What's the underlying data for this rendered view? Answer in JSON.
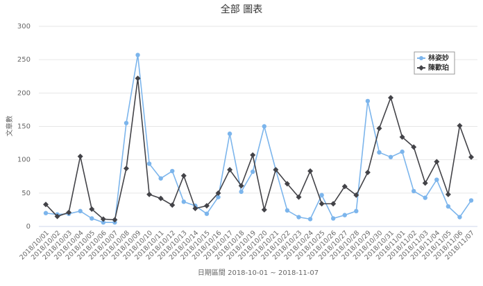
{
  "chart_data": {
    "type": "line",
    "title": "全部 圖表",
    "y_label": "文章數",
    "x_label": "日期區間 2018-10-01 ~ 2018-11-07",
    "categories": [
      "2018/10/01",
      "2018/10/02",
      "2018/10/03",
      "2018/10/04",
      "2018/10/05",
      "2018/10/06",
      "2018/10/07",
      "2018/10/08",
      "2018/10/09",
      "2018/10/10",
      "2018/10/11",
      "2018/10/12",
      "2018/10/13",
      "2018/10/14",
      "2018/10/15",
      "2018/10/16",
      "2018/10/17",
      "2018/10/18",
      "2018/10/19",
      "2018/10/20",
      "2018/10/21",
      "2018/10/22",
      "2018/10/23",
      "2018/10/24",
      "2018/10/25",
      "2018/10/26",
      "2018/10/27",
      "2018/10/28",
      "2018/10/29",
      "2018/10/30",
      "2018/10/31",
      "2018/11/01",
      "2018/11/02",
      "2018/11/03",
      "2018/11/04",
      "2018/11/05",
      "2018/11/06",
      "2018/11/07"
    ],
    "series": [
      {
        "name": "林姿妙",
        "color": "#7cb5ec",
        "marker": "circle",
        "values": [
          20,
          18,
          19,
          23,
          12,
          6,
          6,
          155,
          257,
          94,
          72,
          83,
          37,
          31,
          19,
          44,
          139,
          52,
          82,
          150,
          85,
          24,
          14,
          11,
          47,
          12,
          17,
          23,
          188,
          111,
          104,
          112,
          53,
          43,
          70,
          30,
          14,
          39
        ]
      },
      {
        "name": "陳歡珀",
        "color": "#434348",
        "marker": "diamond",
        "values": [
          33,
          15,
          21,
          105,
          26,
          11,
          10,
          87,
          222,
          48,
          42,
          32,
          76,
          27,
          31,
          50,
          85,
          61,
          107,
          25,
          85,
          64,
          44,
          83,
          34,
          34,
          60,
          47,
          81,
          147,
          193,
          134,
          119,
          65,
          97,
          48,
          151,
          104
        ]
      }
    ],
    "ylim": [
      0,
      300
    ],
    "yticks": [
      0,
      50,
      100,
      150,
      200,
      250,
      300
    ],
    "grid": true,
    "legend": "top-right"
  }
}
